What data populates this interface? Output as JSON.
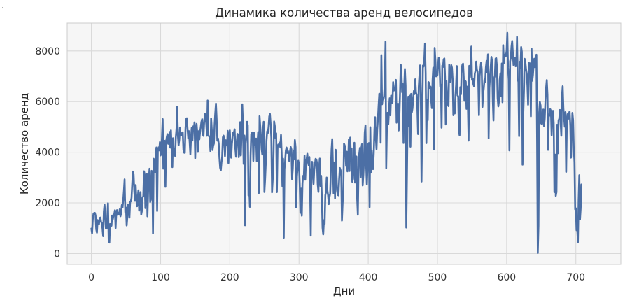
{
  "stray_mark": ".",
  "chart_data": {
    "type": "line",
    "title": "Динамика количества аренд велосипедов",
    "xlabel": "Дни",
    "ylabel": "Количество аренд",
    "xlim": [
      -35,
      765
    ],
    "ylim": [
      -431,
      9100
    ],
    "xticks": [
      0,
      100,
      200,
      300,
      400,
      500,
      600,
      700
    ],
    "yticks": [
      0,
      2000,
      4000,
      6000,
      8000
    ],
    "grid": true,
    "legend": "none",
    "colors": {
      "line": "#4c6fa5",
      "plot_bg": "#f6f6f6",
      "grid": "#d9d9d9",
      "spine": "#cccccc"
    },
    "series": [
      {
        "x_start": 0,
        "x_step": 1,
        "values": [
          985,
          801,
          1349,
          1562,
          1600,
          1606,
          1510,
          959,
          822,
          1321,
          1263,
          1162,
          1406,
          1421,
          1248,
          1204,
          1000,
          683,
          1650,
          1927,
          1543,
          981,
          986,
          1416,
          1985,
          506,
          431,
          1167,
          1098,
          1096,
          1501,
          1360,
          1526,
          1550,
          1708,
          1005,
          1623,
          1712,
          1530,
          1605,
          1538,
          1746,
          1472,
          1589,
          1913,
          1815,
          2115,
          2475,
          2927,
          1635,
          1812,
          1107,
          1450,
          1917,
          1807,
          1417,
          2046,
          2056,
          2192,
          2744,
          3239,
          3117,
          2471,
          2077,
          2703,
          2121,
          1865,
          2210,
          2496,
          1693,
          2028,
          2425,
          1536,
          1685,
          2227,
          2252,
          3249,
          3115,
          1795,
          2808,
          3141,
          1471,
          2455,
          2895,
          3348,
          2034,
          2162,
          3267,
          3126,
          795,
          3744,
          3429,
          3204,
          3944,
          4189,
          1683,
          4036,
          4191,
          4073,
          4400,
          3872,
          4058,
          4595,
          5312,
          3351,
          4401,
          4451,
          2633,
          4433,
          4608,
          4714,
          4333,
          4362,
          4803,
          4182,
          4864,
          4105,
          3409,
          4553,
          3958,
          4123,
          3855,
          4575,
          4917,
          5805,
          4660,
          4274,
          4492,
          4978,
          4677,
          4679,
          4758,
          4788,
          4098,
          3982,
          3974,
          4968,
          5312,
          5342,
          4906,
          4548,
          4833,
          4401,
          3915,
          4586,
          4966,
          4460,
          5020,
          4891,
          5180,
          3767,
          4844,
          5119,
          4744,
          4010,
          4835,
          4507,
          4790,
          4991,
          5202,
          5305,
          4708,
          4648,
          5225,
          5515,
          5362,
          5119,
          4649,
          6043,
          4665,
          4629,
          4592,
          4040,
          5336,
          4881,
          4086,
          4258,
          4342,
          5084,
          5538,
          5923,
          5302,
          4458,
          4541,
          4332,
          3784,
          3387,
          3285,
          3606,
          3840,
          4590,
          4656,
          4390,
          3846,
          4475,
          4302,
          4266,
          4845,
          3574,
          4576,
          4866,
          4294,
          3785,
          4326,
          4602,
          4780,
          4792,
          4905,
          4150,
          3820,
          4338,
          4725,
          4694,
          3805,
          4153,
          5191,
          3873,
          4758,
          5895,
          5130,
          3542,
          4661,
          1115,
          4334,
          4634,
          5204,
          5058,
          2298,
          2710,
          1842,
          3872,
          4713,
          4763,
          4785,
          3659,
          4760,
          4511,
          4274,
          4539,
          3641,
          4352,
          4795,
          2395,
          5423,
          5010,
          4630,
          4120,
          3907,
          4839,
          5202,
          2429,
          2918,
          3570,
          4456,
          4826,
          4765,
          4985,
          5409,
          5511,
          5117,
          4563,
          2416,
          2913,
          3644,
          5217,
          5041,
          4570,
          4748,
          2424,
          4195,
          4304,
          4308,
          4381,
          4187,
          4687,
          3894,
          2659,
          3747,
          627,
          3331,
          3669,
          4068,
          4186,
          3974,
          4046,
          3926,
          3649,
          4035,
          4205,
          4109,
          2933,
          3368,
          4067,
          3717,
          4486,
          4195,
          1817,
          3053,
          3392,
          3663,
          3520,
          2765,
          1607,
          2566,
          1495,
          2792,
          3068,
          3071,
          3867,
          2914,
          3613,
          3727,
          3940,
          3614,
          3485,
          3811,
          2594,
          705,
          3322,
          3620,
          3190,
          2743,
          3310,
          3523,
          3740,
          3709,
          3577,
          2739,
          2431,
          3403,
          3750,
          2660,
          3068,
          2209,
          1011,
          754,
          1317,
          1162,
          2302,
          2423,
          2999,
          2485,
          2294,
          1951,
          2236,
          2368,
          3272,
          4098,
          4521,
          3425,
          2376,
          3598,
          2177,
          4097,
          3214,
          2493,
          2311,
          2298,
          2935,
          3376,
          3292,
          3163,
          1301,
          1977,
          2432,
          4339,
          4270,
          4075,
          3456,
          4023,
          3243,
          3624,
          4509,
          3259,
          4579,
          3761,
          4151,
          2832,
          2947,
          3784,
          4375,
          2802,
          3830,
          3831,
          2169,
          1529,
          3422,
          3922,
          4169,
          3005,
          4154,
          4318,
          2689,
          3129,
          3777,
          4773,
          5062,
          3487,
          2732,
          3389,
          4322,
          4363,
          1834,
          4990,
          3194,
          4066,
          3423,
          3333,
          3956,
          4916,
          5382,
          4569,
          4118,
          4911,
          5298,
          5847,
          6312,
          6192,
          4378,
          7836,
          5892,
          6153,
          6093,
          6230,
          6871,
          8362,
          3372,
          4996,
          5558,
          5102,
          5698,
          6133,
          5459,
          6235,
          6041,
          5936,
          6772,
          6436,
          6457,
          6460,
          6857,
          5169,
          5585,
          5918,
          4862,
          5409,
          6398,
          7460,
          7132,
          6370,
          6691,
          4367,
          6565,
          7290,
          6624,
          1027,
          3214,
          5633,
          6196,
          5026,
          6233,
          4220,
          6304,
          5572,
          5740,
          6169,
          6421,
          6296,
          6883,
          6359,
          6273,
          5728,
          4717,
          6572,
          7030,
          7429,
          6118,
          2843,
          5115,
          7424,
          7384,
          7639,
          8294,
          7129,
          4359,
          6073,
          5260,
          6770,
          6734,
          6536,
          6591,
          6043,
          5743,
          6855,
          7338,
          4127,
          8120,
          7641,
          6998,
          7001,
          7055,
          7494,
          7736,
          7498,
          6598,
          6664,
          4972,
          7421,
          7363,
          7665,
          7702,
          6978,
          5099,
          6825,
          6211,
          5905,
          5823,
          7458,
          6891,
          6779,
          7442,
          7335,
          6879,
          5463,
          5687,
          5531,
          6227,
          6660,
          7403,
          6241,
          6207,
          4840,
          4672,
          6569,
          6290,
          7264,
          7446,
          7499,
          6969,
          6031,
          6830,
          6786,
          5713,
          6591,
          5870,
          4459,
          7410,
          6966,
          7592,
          8173,
          6861,
          6904,
          6685,
          6597,
          7105,
          7216,
          7580,
          7261,
          7175,
          6824,
          5464,
          7013,
          7273,
          7534,
          7286,
          5786,
          6299,
          6544,
          6883,
          6784,
          7347,
          7605,
          7148,
          7865,
          4549,
          6530,
          7006,
          7375,
          7765,
          7582,
          6053,
          5255,
          6917,
          7040,
          7697,
          7713,
          7350,
          6140,
          5810,
          6034,
          6864,
          7112,
          6203,
          7504,
          5976,
          8227,
          7525,
          7767,
          7870,
          7804,
          8009,
          8714,
          7333,
          6869,
          4073,
          7591,
          7720,
          8167,
          8395,
          7907,
          7436,
          7538,
          7733,
          7393,
          7415,
          8555,
          6889,
          6778,
          4639,
          7572,
          7328,
          8156,
          7965,
          3510,
          5478,
          6392,
          7691,
          7570,
          7282,
          7109,
          6639,
          5875,
          7534,
          7461,
          7509,
          5424,
          8090,
          6824,
          7058,
          7466,
          7693,
          7359,
          7444,
          7852,
          4459,
          22,
          1096,
          5566,
          5986,
          5847,
          5138,
          5107,
          5259,
          5686,
          5035,
          5315,
          5992,
          6536,
          6852,
          6269,
          4094,
          5495,
          5445,
          5698,
          5629,
          4669,
          5499,
          5634,
          5146,
          2425,
          3910,
          2277,
          2424,
          5087,
          3959,
          5260,
          5323,
          5668,
          5191,
          4649,
          6234,
          6606,
          5729,
          5375,
          5008,
          5582,
          3228,
          5170,
          5501,
          5319,
          5532,
          5611,
          5047,
          3786,
          4585,
          5557,
          5267,
          4128,
          3623,
          1749,
          1787,
          920,
          1013,
          441,
          2114,
          3095,
          1341,
          1796,
          2729
        ]
      }
    ]
  }
}
